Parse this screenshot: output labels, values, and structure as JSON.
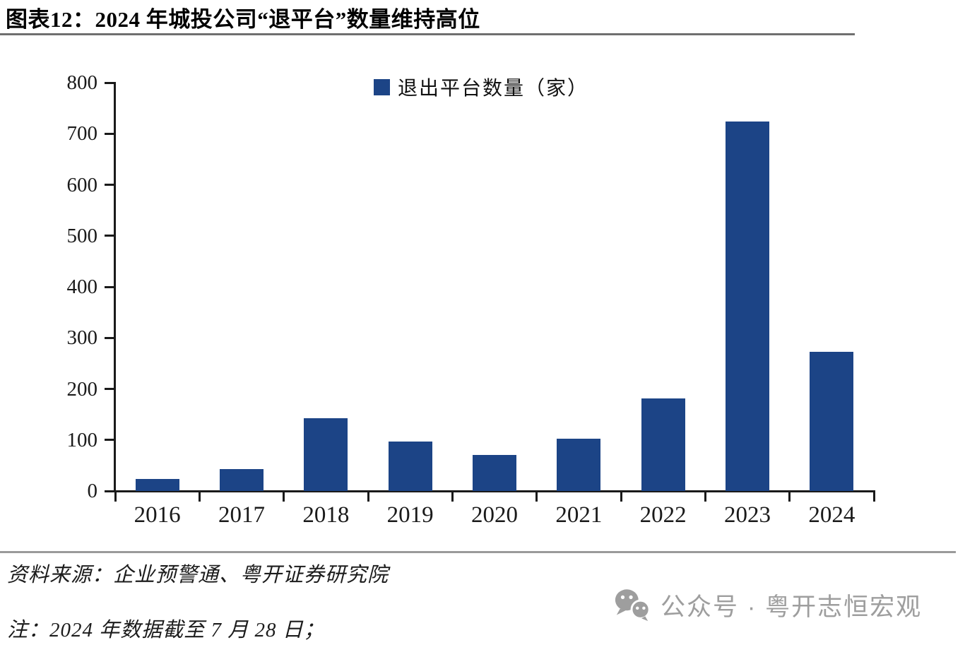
{
  "header": {
    "title": "图表12：2024 年城投公司“退平台”数量维持高位"
  },
  "chart_data": {
    "type": "bar",
    "title": "图表12：2024 年城投公司“退平台”数量维持高位",
    "legend": [
      "退出平台数量（家）"
    ],
    "legend_position": "top-center",
    "categories": [
      "2016",
      "2017",
      "2018",
      "2019",
      "2020",
      "2021",
      "2022",
      "2023",
      "2024"
    ],
    "values": [
      23,
      43,
      143,
      97,
      71,
      102,
      181,
      724,
      273
    ],
    "xlabel": "",
    "ylabel": "",
    "ylim": [
      0,
      800
    ],
    "yticks": [
      0,
      100,
      200,
      300,
      400,
      500,
      600,
      700,
      800
    ],
    "grid": false,
    "bar_color": "#1C4486"
  },
  "footer": {
    "source": "资料来源：企业预警通、粤开证券研究院",
    "note": "注：2024 年数据截至 7 月 28 日；",
    "wechat_label": "公众号 · 粤开志恒宏观"
  },
  "colors": {
    "bar": "#1C4486",
    "axis": "#1a1a1a",
    "separator_gray": "#9a9a9a",
    "wechat_gray": "#9e9e9e"
  }
}
